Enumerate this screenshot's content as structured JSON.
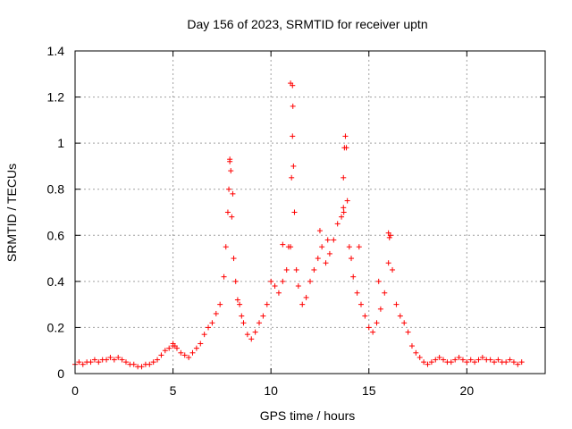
{
  "chart_data": {
    "type": "scatter",
    "title": "Day 156 of 2023, SRMTID for receiver uptn",
    "xlabel": "GPS time / hours",
    "ylabel": "SRMTID / TECUs",
    "xlim": [
      0,
      24
    ],
    "ylim": [
      0,
      1.4
    ],
    "x_ticks": [
      0,
      5,
      10,
      15,
      20
    ],
    "x_tick_labels": [
      "0",
      "5",
      "10",
      "15",
      "20"
    ],
    "y_ticks": [
      0,
      0.2,
      0.4,
      0.6,
      0.8,
      1,
      1.2,
      1.4
    ],
    "y_tick_labels": [
      "0",
      "0.2",
      "0.4",
      "0.6",
      "0.8",
      "1",
      "1.2",
      "1.4"
    ],
    "grid": true,
    "marker": "plus",
    "color": "#ff0000",
    "series": [
      {
        "name": "SRMTID",
        "x": [
          0.0,
          0.2,
          0.4,
          0.6,
          0.8,
          1.0,
          1.2,
          1.4,
          1.6,
          1.8,
          2.0,
          2.2,
          2.4,
          2.6,
          2.8,
          3.0,
          3.2,
          3.4,
          3.6,
          3.8,
          4.0,
          4.2,
          4.4,
          4.6,
          4.8,
          5.0,
          5.2,
          5.4,
          5.6,
          5.8,
          6.0,
          6.2,
          6.4,
          6.6,
          6.8,
          7.0,
          7.2,
          7.4,
          7.6,
          7.7,
          7.8,
          7.85,
          7.9,
          8.0,
          8.1,
          8.2,
          8.3,
          8.4,
          8.5,
          8.6,
          8.8,
          9.0,
          9.2,
          9.4,
          9.6,
          9.8,
          10.0,
          10.2,
          10.4,
          10.6,
          10.8,
          11.0,
          11.05,
          11.1,
          11.15,
          11.2,
          11.3,
          11.4,
          11.6,
          11.8,
          12.0,
          12.2,
          12.4,
          12.6,
          12.8,
          13.0,
          13.2,
          13.4,
          13.6,
          13.7,
          13.75,
          13.8,
          13.9,
          14.0,
          14.2,
          14.4,
          14.6,
          14.8,
          15.0,
          15.2,
          15.4,
          15.6,
          15.8,
          16.0,
          16.1,
          16.2,
          16.4,
          16.6,
          16.8,
          17.0,
          17.2,
          17.4,
          17.6,
          17.8,
          18.0,
          18.2,
          18.4,
          18.6,
          18.8,
          19.0,
          19.2,
          19.4,
          19.6,
          19.8,
          20.0,
          20.2,
          20.4,
          20.6,
          20.8,
          21.0,
          21.2,
          21.4,
          21.6,
          21.8,
          22.0,
          22.2,
          22.4,
          22.6,
          22.8,
          5.0,
          5.1,
          7.9,
          7.95,
          8.05,
          11.0,
          11.1,
          11.12,
          13.7,
          13.72,
          13.85,
          16.0,
          16.05,
          12.5,
          12.9,
          10.6,
          10.9,
          14.1,
          14.5,
          15.5
        ],
        "y": [
          0.04,
          0.05,
          0.04,
          0.05,
          0.05,
          0.06,
          0.05,
          0.06,
          0.06,
          0.07,
          0.06,
          0.07,
          0.06,
          0.05,
          0.04,
          0.04,
          0.03,
          0.03,
          0.04,
          0.04,
          0.05,
          0.06,
          0.08,
          0.1,
          0.11,
          0.12,
          0.11,
          0.09,
          0.08,
          0.07,
          0.09,
          0.11,
          0.13,
          0.17,
          0.2,
          0.22,
          0.26,
          0.3,
          0.42,
          0.55,
          0.7,
          0.8,
          0.92,
          0.68,
          0.5,
          0.4,
          0.32,
          0.3,
          0.25,
          0.22,
          0.17,
          0.15,
          0.18,
          0.22,
          0.25,
          0.3,
          0.4,
          0.38,
          0.35,
          0.4,
          0.45,
          0.55,
          0.85,
          1.03,
          0.9,
          0.7,
          0.45,
          0.38,
          0.3,
          0.33,
          0.4,
          0.45,
          0.5,
          0.55,
          0.48,
          0.52,
          0.58,
          0.65,
          0.68,
          0.85,
          0.98,
          1.03,
          0.75,
          0.55,
          0.42,
          0.35,
          0.3,
          0.25,
          0.2,
          0.18,
          0.22,
          0.28,
          0.35,
          0.48,
          0.6,
          0.45,
          0.3,
          0.25,
          0.22,
          0.18,
          0.12,
          0.09,
          0.07,
          0.05,
          0.04,
          0.05,
          0.06,
          0.07,
          0.06,
          0.05,
          0.05,
          0.06,
          0.07,
          0.06,
          0.05,
          0.06,
          0.05,
          0.06,
          0.07,
          0.06,
          0.06,
          0.05,
          0.06,
          0.05,
          0.05,
          0.06,
          0.05,
          0.04,
          0.05,
          0.13,
          0.12,
          0.93,
          0.88,
          0.78,
          1.26,
          1.25,
          1.16,
          0.72,
          0.7,
          0.98,
          0.61,
          0.59,
          0.62,
          0.58,
          0.56,
          0.55,
          0.5,
          0.55,
          0.4
        ]
      }
    ]
  }
}
